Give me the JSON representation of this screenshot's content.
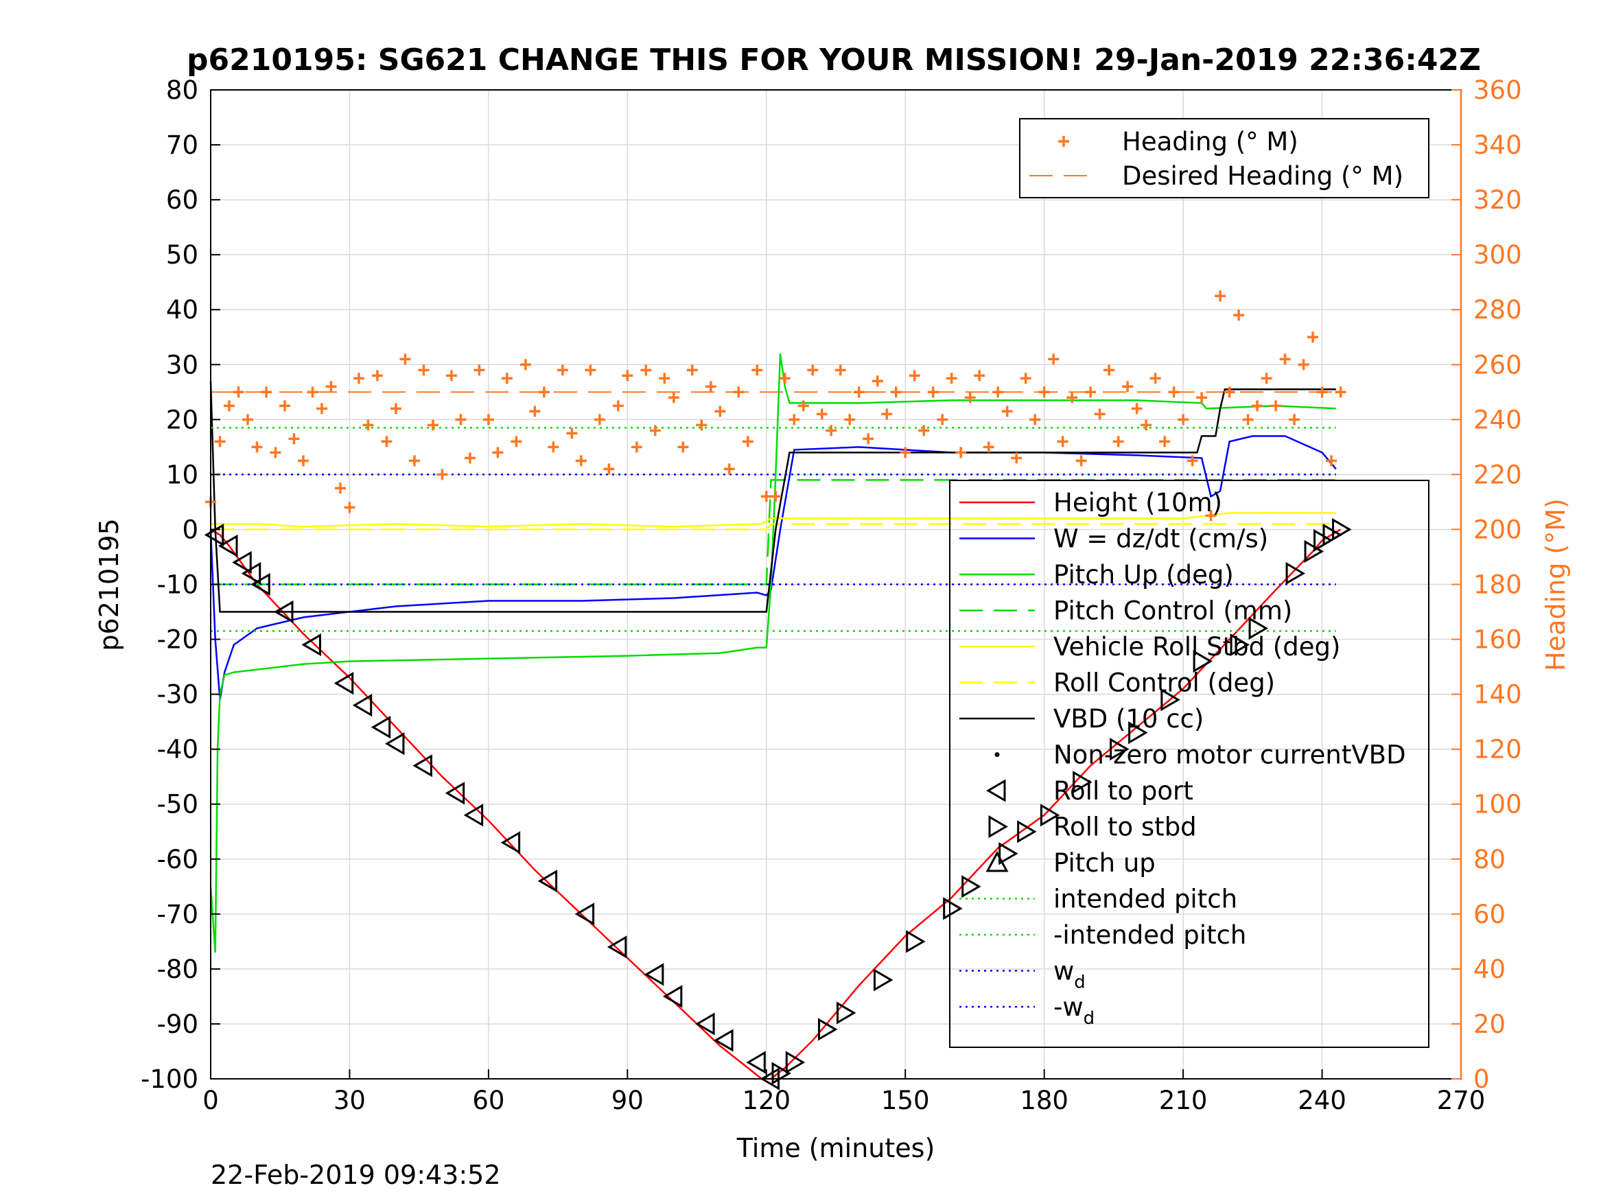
{
  "colors": {
    "height": "#ff0000",
    "w": "#0000ff",
    "pitch": "#00dd00",
    "roll": "#ffff00",
    "vbd": "#000000",
    "heading": "#ff7722",
    "right_axis": "#ff7722",
    "grid": "#d9d9d9"
  },
  "chart_data": {
    "type": "line",
    "title": "p6210195: SG621 CHANGE THIS FOR YOUR MISSION! 29-Jan-2019 22:36:42Z",
    "xlabel": "Time (minutes)",
    "ylabel": "p6210195",
    "ylabel_right": "Heading (°M)",
    "xlim": [
      0,
      270
    ],
    "ylim": [
      -100,
      80
    ],
    "ylim_right": [
      0,
      360
    ],
    "x_ticks": [
      0,
      30,
      60,
      90,
      120,
      150,
      180,
      210,
      240,
      270
    ],
    "y_ticks": [
      -100,
      -90,
      -80,
      -70,
      -60,
      -50,
      -40,
      -30,
      -20,
      -10,
      0,
      10,
      20,
      30,
      40,
      50,
      60,
      70,
      80
    ],
    "y_ticks_right": [
      0,
      20,
      40,
      60,
      80,
      100,
      120,
      140,
      160,
      180,
      200,
      220,
      240,
      260,
      280,
      300,
      320,
      340,
      360
    ],
    "grid": true,
    "legend_heading": [
      "Heading (° M)",
      "Desired Heading (° M)"
    ],
    "legend_main": [
      "Height (10m)",
      "W = dz/dt (cm/s)",
      "Pitch Up (deg)",
      "Pitch Control (mm)",
      "Vehicle Roll Stbd (deg)",
      "Roll Control (deg)",
      "VBD (10 cc)",
      "Non-zero motor currentVBD",
      "Roll to port",
      "Roll to stbd",
      "Pitch up",
      "intended pitch",
      "-intended pitch",
      "w",
      "-w"
    ],
    "legend_subscript": "d",
    "series": [
      {
        "name": "Height (10m)",
        "style": "solid",
        "color_key": "height",
        "x": [
          0,
          2,
          4,
          10,
          20,
          30,
          40,
          50,
          60,
          70,
          80,
          90,
          100,
          110,
          119,
          121,
          124,
          130,
          140,
          150,
          160,
          170,
          180,
          190,
          200,
          210,
          220,
          230,
          238,
          240,
          244
        ],
        "y": [
          0,
          -1,
          -3,
          -10,
          -19,
          -27,
          -36,
          -45,
          -53,
          -62,
          -70,
          -78,
          -86,
          -94,
          -100,
          -100,
          -98,
          -93,
          -83,
          -74,
          -67,
          -58,
          -52,
          -43,
          -36,
          -29,
          -20,
          -11,
          -4,
          -2,
          0
        ]
      },
      {
        "name": "W = dz/dt (cm/s)",
        "style": "solid",
        "color_key": "w",
        "x": [
          0,
          1,
          2,
          3,
          5,
          10,
          20,
          30,
          40,
          60,
          80,
          100,
          118,
          120,
          121,
          123,
          126,
          140,
          160,
          180,
          200,
          214,
          216,
          218,
          220,
          225,
          232,
          240,
          243
        ],
        "y": [
          0,
          -20,
          -31,
          -26,
          -21,
          -18,
          -16,
          -15,
          -14,
          -13,
          -13,
          -12.5,
          -11.5,
          -12,
          -11,
          0,
          14.5,
          15,
          14,
          14,
          13.5,
          13,
          6,
          7,
          16,
          17,
          17,
          14,
          11
        ]
      },
      {
        "name": "Pitch Up (deg)",
        "style": "solid",
        "color_key": "pitch",
        "x": [
          0,
          1,
          1.5,
          2,
          3,
          5,
          10,
          20,
          30,
          60,
          90,
          110,
          118,
          120,
          121,
          122,
          123,
          124,
          125,
          140,
          160,
          180,
          200,
          214,
          215,
          230,
          243
        ],
        "y": [
          -65,
          -77,
          -40,
          -30,
          -26.5,
          -26,
          -25.5,
          -24.5,
          -24,
          -23.5,
          -23,
          -22.5,
          -21.5,
          -21.5,
          -10,
          10,
          32,
          26,
          23,
          23,
          23.5,
          23.5,
          23.5,
          23,
          22,
          22.5,
          22
        ]
      },
      {
        "name": "Pitch Control (mm)",
        "style": "dash",
        "color_key": "pitch",
        "x": [
          0,
          120,
          121,
          243
        ],
        "y": [
          -10,
          -10,
          9,
          9
        ]
      },
      {
        "name": "Vehicle Roll Stbd (deg)",
        "style": "solid",
        "color_key": "roll",
        "x": [
          0,
          10,
          20,
          40,
          60,
          80,
          100,
          119,
          121,
          140,
          160,
          180,
          200,
          210,
          220,
          243
        ],
        "y": [
          1,
          1,
          0.5,
          1,
          0.5,
          1,
          0.5,
          1,
          2,
          2,
          2,
          2,
          2,
          2,
          3,
          3
        ]
      },
      {
        "name": "Roll Control (deg)",
        "style": "dash",
        "color_key": "roll",
        "x": [
          0,
          120,
          121,
          243
        ],
        "y": [
          0,
          0,
          1,
          1
        ]
      },
      {
        "name": "VBD (10 cc)",
        "style": "solid",
        "color_key": "vbd",
        "x": [
          0,
          1,
          2,
          119,
          120,
          122,
          125,
          213,
          214,
          217,
          218,
          219,
          243
        ],
        "y": [
          27,
          0,
          -15,
          -15,
          -15,
          0,
          14,
          14,
          17,
          17,
          22,
          25.5,
          25.5
        ]
      },
      {
        "name": "intended pitch",
        "style": "dot",
        "color_key": "pitch",
        "x": [
          0,
          243
        ],
        "y": [
          18.5,
          18.5
        ]
      },
      {
        "name": "-intended pitch",
        "style": "dot",
        "color_key": "pitch",
        "x": [
          0,
          243
        ],
        "y": [
          -18.5,
          -18.5
        ]
      },
      {
        "name": "w_d",
        "style": "dot",
        "color_key": "w",
        "x": [
          0,
          243
        ],
        "y": [
          10,
          10
        ]
      },
      {
        "name": "-w_d",
        "style": "dot",
        "color_key": "w",
        "x": [
          0,
          243
        ],
        "y": [
          -10,
          -10
        ]
      }
    ],
    "heading": {
      "name": "Heading (° M)",
      "axis": "right",
      "x": [
        0,
        2,
        4,
        6,
        8,
        10,
        12,
        14,
        16,
        18,
        20,
        22,
        24,
        26,
        28,
        30,
        32,
        34,
        36,
        38,
        40,
        42,
        44,
        46,
        48,
        50,
        52,
        54,
        56,
        58,
        60,
        62,
        64,
        66,
        68,
        70,
        72,
        74,
        76,
        78,
        80,
        82,
        84,
        86,
        88,
        90,
        92,
        94,
        96,
        98,
        100,
        102,
        104,
        106,
        108,
        110,
        112,
        114,
        116,
        118,
        120,
        122,
        124,
        126,
        128,
        130,
        132,
        134,
        136,
        138,
        140,
        142,
        144,
        146,
        148,
        150,
        152,
        154,
        156,
        158,
        160,
        162,
        164,
        166,
        168,
        170,
        172,
        174,
        176,
        178,
        180,
        182,
        184,
        186,
        188,
        190,
        192,
        194,
        196,
        198,
        200,
        202,
        204,
        206,
        208,
        210,
        212,
        214,
        216,
        218,
        220,
        222,
        224,
        226,
        228,
        230,
        232,
        234,
        236,
        238,
        240,
        242,
        244
      ],
      "y": [
        210,
        232,
        245,
        250,
        240,
        230,
        250,
        228,
        245,
        233,
        225,
        250,
        244,
        252,
        215,
        208,
        255,
        238,
        256,
        232,
        244,
        262,
        225,
        258,
        238,
        220,
        256,
        240,
        226,
        258,
        240,
        228,
        255,
        232,
        260,
        243,
        250,
        230,
        258,
        235,
        225,
        258,
        240,
        222,
        245,
        256,
        230,
        258,
        236,
        255,
        248,
        230,
        258,
        238,
        252,
        243,
        222,
        250,
        232,
        258,
        212,
        212,
        255,
        240,
        245,
        258,
        242,
        236,
        258,
        240,
        250,
        233,
        254,
        242,
        250,
        228,
        256,
        236,
        250,
        240,
        255,
        228,
        248,
        256,
        230,
        250,
        243,
        226,
        255,
        240,
        250,
        262,
        232,
        248,
        225,
        250,
        242,
        258,
        232,
        252,
        244,
        238,
        255,
        232,
        250,
        240,
        225,
        248,
        205,
        285,
        250,
        278,
        240,
        245,
        255,
        245,
        262,
        240,
        260,
        270,
        250,
        225,
        250
      ]
    },
    "desired_heading": {
      "name": "Desired Heading (° M)",
      "axis": "right",
      "x": [
        0,
        244
      ],
      "y": [
        250,
        250
      ]
    },
    "markers_roll_port": {
      "name": "Roll to port",
      "x": [
        1,
        4,
        7,
        9,
        11,
        16,
        22,
        29,
        33,
        37,
        40,
        46,
        53,
        57,
        65,
        73,
        81,
        88,
        96,
        100,
        107,
        111,
        118,
        121
      ],
      "y": [
        -1,
        -3,
        -6,
        -8,
        -10,
        -15,
        -21,
        -28,
        -32,
        -36,
        -39,
        -43,
        -48,
        -52,
        -57,
        -64,
        -70,
        -76,
        -81,
        -85,
        -90,
        -93,
        -97,
        -100
      ]
    },
    "markers_roll_stbd": {
      "name": "Roll to stbd",
      "x": [
        123,
        126,
        133,
        137,
        145,
        152,
        160,
        164,
        172,
        176,
        181,
        188,
        196,
        200,
        207,
        214,
        222,
        226,
        234,
        238,
        240,
        242,
        244
      ],
      "y": [
        -99,
        -97,
        -91,
        -88,
        -82,
        -75,
        -69,
        -65,
        -59,
        -55,
        -52,
        -46,
        -40,
        -37,
        -31,
        -24,
        -21,
        -18,
        -8,
        -4,
        -2,
        -1,
        0
      ]
    }
  },
  "timestamp": "22-Feb-2019 09:43:52"
}
